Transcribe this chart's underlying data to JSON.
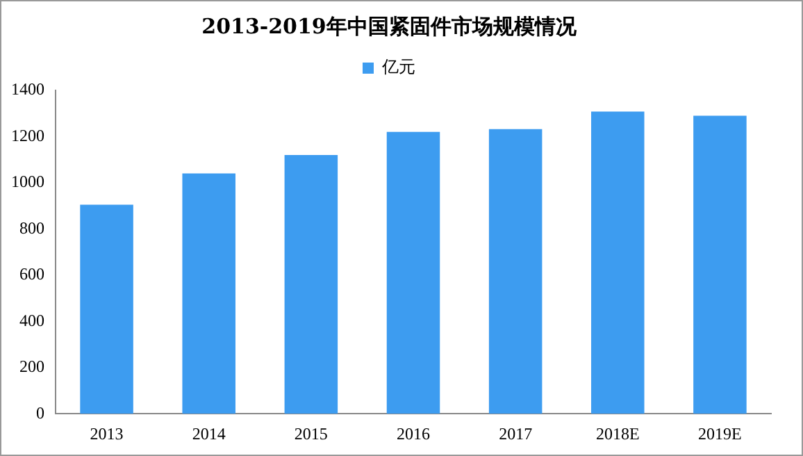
{
  "chart_data": {
    "type": "bar",
    "title": "2013-2019年中国紧固件市场规模情况",
    "categories": [
      "2013",
      "2014",
      "2015",
      "2016",
      "2017",
      "2018E",
      "2019E"
    ],
    "series": [
      {
        "name": "亿元",
        "color": "#3d9cf0",
        "values": [
          905,
          1040,
          1120,
          1220,
          1232,
          1308,
          1290
        ]
      }
    ],
    "ylim": [
      0,
      1400
    ],
    "yticks": [
      0,
      200,
      400,
      600,
      800,
      1000,
      1200,
      1400
    ],
    "grid": false,
    "legend": "top"
  }
}
